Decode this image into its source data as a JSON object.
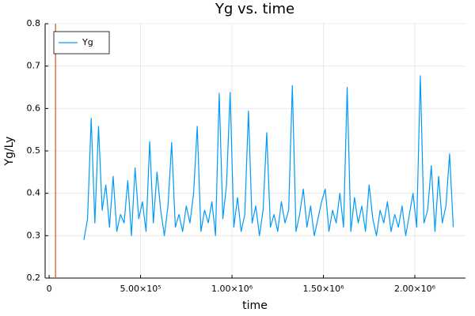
{
  "chart_data": {
    "type": "line",
    "title": "Yg vs. time",
    "x_label": "time",
    "y_label": "Yg/Ly",
    "xlim": [
      -22000,
      2277000
    ],
    "ylim": [
      0.2,
      0.8
    ],
    "xticks": [
      0,
      {
        "value": 500000,
        "label": "5.00×10⁵"
      },
      {
        "value": 1000000,
        "label": "1.00×10⁶"
      },
      {
        "value": 1500000,
        "label": "1.50×10⁶"
      },
      {
        "value": 2000000,
        "label": "2.00×10⁶"
      }
    ],
    "yticks": [
      0.2,
      0.3,
      0.4,
      0.5,
      0.6,
      0.7,
      0.8
    ],
    "grid": true,
    "legend": "top-left",
    "vline": {
      "x": 35000,
      "color": "#e26f46"
    },
    "x": [
      190000,
      210000,
      230000,
      250000,
      270000,
      290000,
      310000,
      330000,
      350000,
      370000,
      390000,
      410000,
      430000,
      450000,
      470000,
      490000,
      510000,
      530000,
      550000,
      570000,
      590000,
      610000,
      630000,
      650000,
      670000,
      690000,
      710000,
      730000,
      750000,
      770000,
      790000,
      810000,
      830000,
      850000,
      870000,
      890000,
      910000,
      930000,
      950000,
      970000,
      990000,
      1010000,
      1030000,
      1050000,
      1070000,
      1090000,
      1110000,
      1130000,
      1150000,
      1170000,
      1190000,
      1210000,
      1230000,
      1250000,
      1270000,
      1290000,
      1310000,
      1330000,
      1350000,
      1370000,
      1390000,
      1410000,
      1430000,
      1450000,
      1470000,
      1490000,
      1510000,
      1530000,
      1550000,
      1570000,
      1590000,
      1610000,
      1630000,
      1650000,
      1670000,
      1690000,
      1710000,
      1730000,
      1750000,
      1770000,
      1790000,
      1810000,
      1830000,
      1850000,
      1870000,
      1890000,
      1910000,
      1930000,
      1950000,
      1970000,
      1990000,
      2010000,
      2030000,
      2050000,
      2070000,
      2090000,
      2110000,
      2130000,
      2150000,
      2170000,
      2190000,
      2210000
    ],
    "series": [
      {
        "name": "Yg",
        "color": "#009af9",
        "values": [
          0.29,
          0.34,
          0.577,
          0.33,
          0.558,
          0.36,
          0.42,
          0.32,
          0.44,
          0.31,
          0.35,
          0.33,
          0.43,
          0.3,
          0.46,
          0.34,
          0.38,
          0.31,
          0.522,
          0.33,
          0.45,
          0.36,
          0.3,
          0.37,
          0.52,
          0.32,
          0.35,
          0.31,
          0.37,
          0.33,
          0.4,
          0.558,
          0.31,
          0.36,
          0.33,
          0.38,
          0.3,
          0.636,
          0.34,
          0.42,
          0.638,
          0.32,
          0.39,
          0.31,
          0.35,
          0.594,
          0.33,
          0.37,
          0.3,
          0.36,
          0.543,
          0.32,
          0.35,
          0.31,
          0.38,
          0.33,
          0.36,
          0.654,
          0.31,
          0.35,
          0.41,
          0.32,
          0.37,
          0.3,
          0.34,
          0.38,
          0.41,
          0.31,
          0.36,
          0.33,
          0.4,
          0.32,
          0.65,
          0.31,
          0.39,
          0.33,
          0.37,
          0.31,
          0.42,
          0.34,
          0.3,
          0.36,
          0.33,
          0.38,
          0.31,
          0.35,
          0.32,
          0.37,
          0.3,
          0.35,
          0.4,
          0.32,
          0.677,
          0.33,
          0.36,
          0.465,
          0.31,
          0.44,
          0.33,
          0.37,
          0.493,
          0.32
        ]
      }
    ]
  }
}
